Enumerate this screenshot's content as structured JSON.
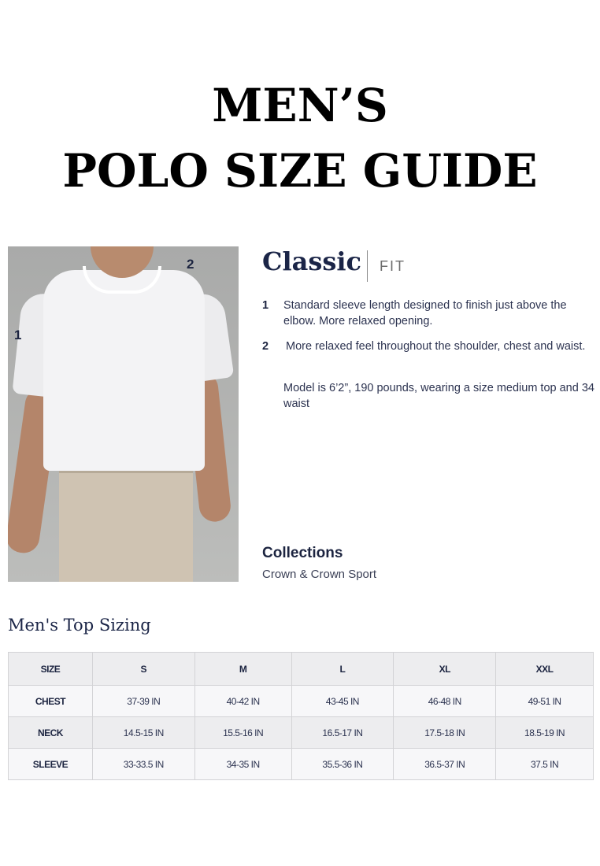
{
  "title": {
    "line1": "MEN’S",
    "line2": "POLO SIZE GUIDE"
  },
  "photo": {
    "callout1": "1",
    "callout2": "2"
  },
  "fit": {
    "name": "Classic",
    "label": "FIT",
    "features": [
      {
        "num": "1",
        "text": "Standard sleeve length designed to finish just above the elbow. More relaxed opening."
      },
      {
        "num": "2",
        "text": "More relaxed feel throughout the shoulder, chest and waist."
      }
    ],
    "model_note": "Model is 6’2”, 190 pounds, wearing a size medium top and 34 waist"
  },
  "collections": {
    "heading": "Collections",
    "value": "Crown & Crown Sport"
  },
  "sizing": {
    "heading": "Men's Top Sizing",
    "header": [
      "SIZE",
      "S",
      "M",
      "L",
      "XL",
      "XXL"
    ],
    "rows": [
      [
        "CHEST",
        "37-39 IN",
        "40-42 IN",
        "43-45 IN",
        "46-48 IN",
        "49-51 IN"
      ],
      [
        "NECK",
        "14.5-15 IN",
        "15.5-16 IN",
        "16.5-17 IN",
        "17.5-18 IN",
        "18.5-19 IN"
      ],
      [
        "SLEEVE",
        "33-33.5 IN",
        "34-35 IN",
        "35.5-36 IN",
        "36.5-37 IN",
        "37.5 IN"
      ]
    ]
  }
}
